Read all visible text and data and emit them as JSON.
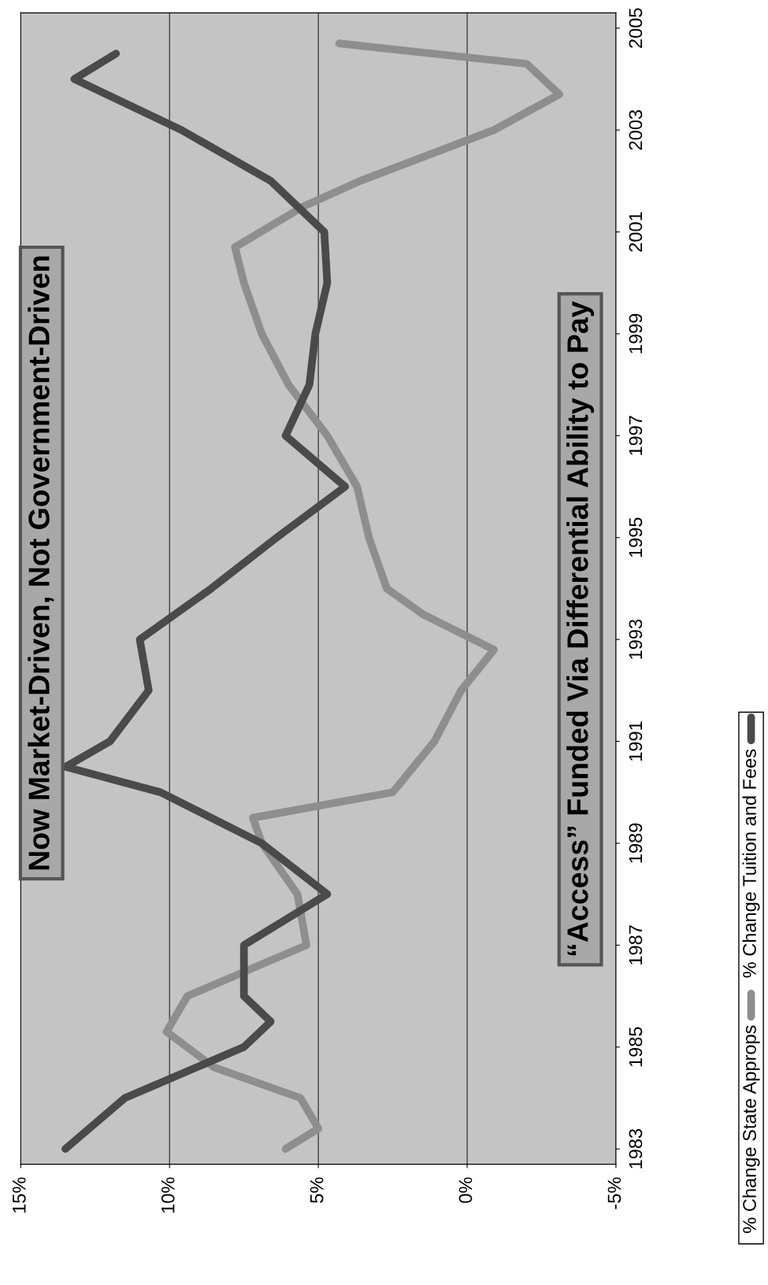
{
  "chart_data": {
    "type": "line",
    "x": [
      1983,
      1983.4,
      1984,
      1984.6,
      1985.3,
      1986,
      1987,
      1988,
      1989,
      1989.5,
      1990,
      1991,
      1992,
      1992.8,
      1993.5,
      1994,
      1995,
      1996,
      1997,
      1998,
      1999,
      2000,
      2000.7,
      2001.5,
      2002,
      2003,
      2003.7,
      2004.3,
      2004.7
    ],
    "series": [
      {
        "name": "% Change State Approps",
        "color": "#8e8e8e",
        "values": [
          6.1,
          5.0,
          5.6,
          8.5,
          10.1,
          9.4,
          5.4,
          5.7,
          6.9,
          7.2,
          2.5,
          1.1,
          0.2,
          -0.9,
          1.5,
          2.7,
          3.3,
          3.7,
          4.7,
          6.0,
          6.9,
          7.5,
          7.8,
          5.5,
          3.6,
          -0.9,
          -3.1,
          -2.0,
          4.3
        ]
      },
      {
        "name": "% Change Tuition and Fees",
        "color": "#4a4a4a",
        "x": [
          1983,
          1984,
          1985,
          1985.5,
          1986,
          1987,
          1988,
          1989,
          1990,
          1990.5,
          1991,
          1992,
          1993,
          1994,
          1995,
          1996,
          1997,
          1998,
          1999,
          2000,
          2001,
          2002,
          2003,
          2004,
          2004.5
        ],
        "values": [
          13.5,
          11.5,
          7.5,
          6.6,
          7.5,
          7.5,
          4.7,
          6.9,
          10.3,
          13.5,
          12.0,
          10.7,
          11.0,
          8.6,
          6.4,
          4.1,
          6.1,
          5.3,
          5.1,
          4.7,
          4.8,
          6.6,
          9.6,
          13.2,
          11.8
        ]
      }
    ],
    "orientation": "horizontal",
    "ylim": [
      1982.7,
      2005.3
    ],
    "yticks": [
      1983,
      1985,
      1987,
      1989,
      1991,
      1993,
      1995,
      1997,
      1999,
      2001,
      2003,
      2005
    ],
    "xlim": [
      15,
      -5
    ],
    "xticks": [
      {
        "value": 15,
        "label": "15%"
      },
      {
        "value": 10,
        "label": "10%"
      },
      {
        "value": 5,
        "label": "5%"
      },
      {
        "value": 0,
        "label": "0%"
      },
      {
        "value": -5,
        "label": "-5%"
      }
    ],
    "grid": "x",
    "legend": "right",
    "marker": "none",
    "line_style": "solid",
    "annotations": [
      "Now Market-Driven, Not Government-Driven",
      "“Access” Funded Via Differential Ability to Pay"
    ]
  }
}
